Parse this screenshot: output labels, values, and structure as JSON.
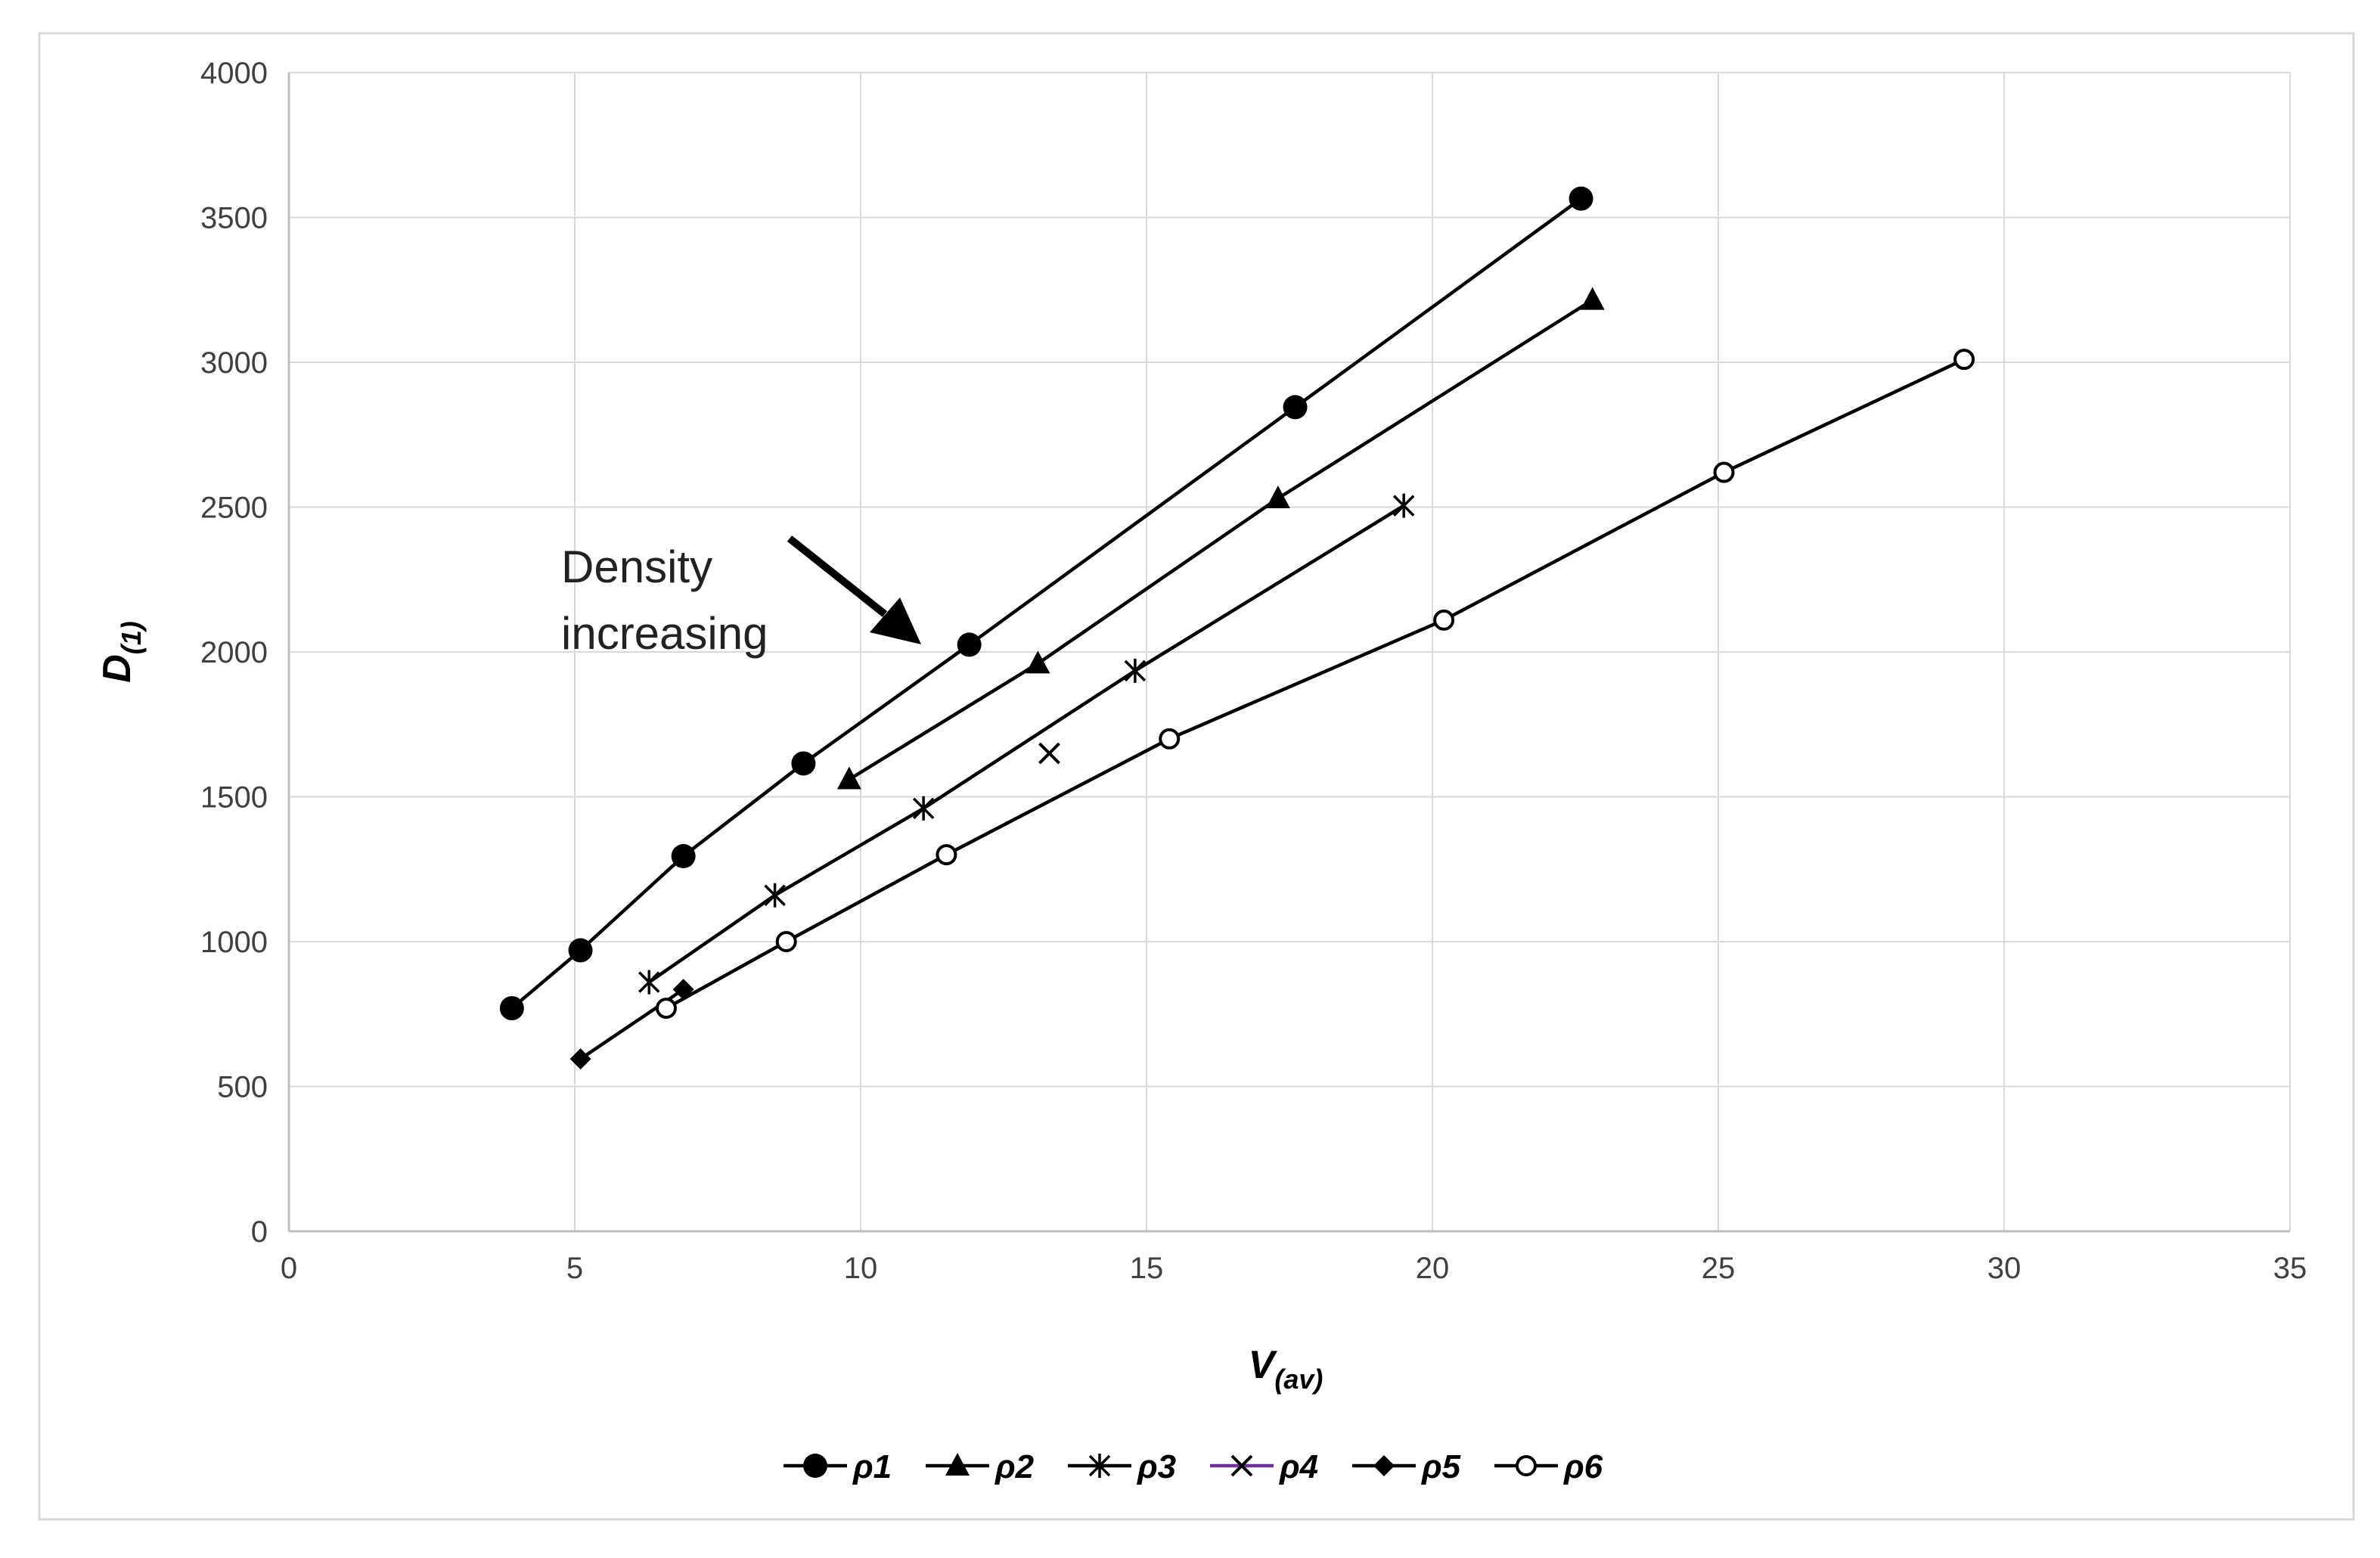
{
  "chart_data": {
    "type": "line",
    "xlabel": {
      "main": "V",
      "sub": "(av)"
    },
    "ylabel": {
      "main": "D",
      "sub": "(1)"
    },
    "xlim": [
      0,
      35
    ],
    "ylim": [
      0,
      4000
    ],
    "xticks": [
      0,
      5,
      10,
      15,
      20,
      25,
      30,
      35
    ],
    "yticks": [
      0,
      500,
      1000,
      1500,
      2000,
      2500,
      3000,
      3500,
      4000
    ],
    "grid": true,
    "legend_position": "bottom",
    "annotation": {
      "lines": [
        "Density",
        "increasing"
      ],
      "arrow": true
    },
    "series": [
      {
        "name": "ρ1",
        "marker": "filled-circle",
        "color": "#000000",
        "x": [
          3.9,
          5.1,
          6.9,
          9.0,
          11.9,
          17.6,
          22.6
        ],
        "y": [
          770,
          970,
          1295,
          1615,
          2025,
          2845,
          3565
        ]
      },
      {
        "name": "ρ2",
        "marker": "filled-triangle",
        "color": "#000000",
        "x": [
          9.8,
          13.1,
          17.3,
          22.8
        ],
        "y": [
          1560,
          1960,
          2530,
          3215
        ]
      },
      {
        "name": "ρ3",
        "marker": "star",
        "color": "#000000",
        "x": [
          6.3,
          8.5,
          11.1,
          14.8,
          19.5
        ],
        "y": [
          860,
          1160,
          1460,
          1935,
          2505
        ]
      },
      {
        "name": "ρ4",
        "marker": "x",
        "color": "#000000",
        "legend_line_color": "#7030A0",
        "x": [
          13.3
        ],
        "y": [
          1650
        ]
      },
      {
        "name": "ρ5",
        "marker": "filled-diamond",
        "color": "#000000",
        "x": [
          5.1,
          6.9
        ],
        "y": [
          595,
          835
        ]
      },
      {
        "name": "ρ6",
        "marker": "open-circle",
        "color": "#000000",
        "x": [
          6.6,
          8.7,
          11.5,
          15.4,
          20.2,
          25.1,
          29.3
        ],
        "y": [
          770,
          1000,
          1300,
          1700,
          2110,
          2620,
          3010
        ]
      }
    ]
  }
}
